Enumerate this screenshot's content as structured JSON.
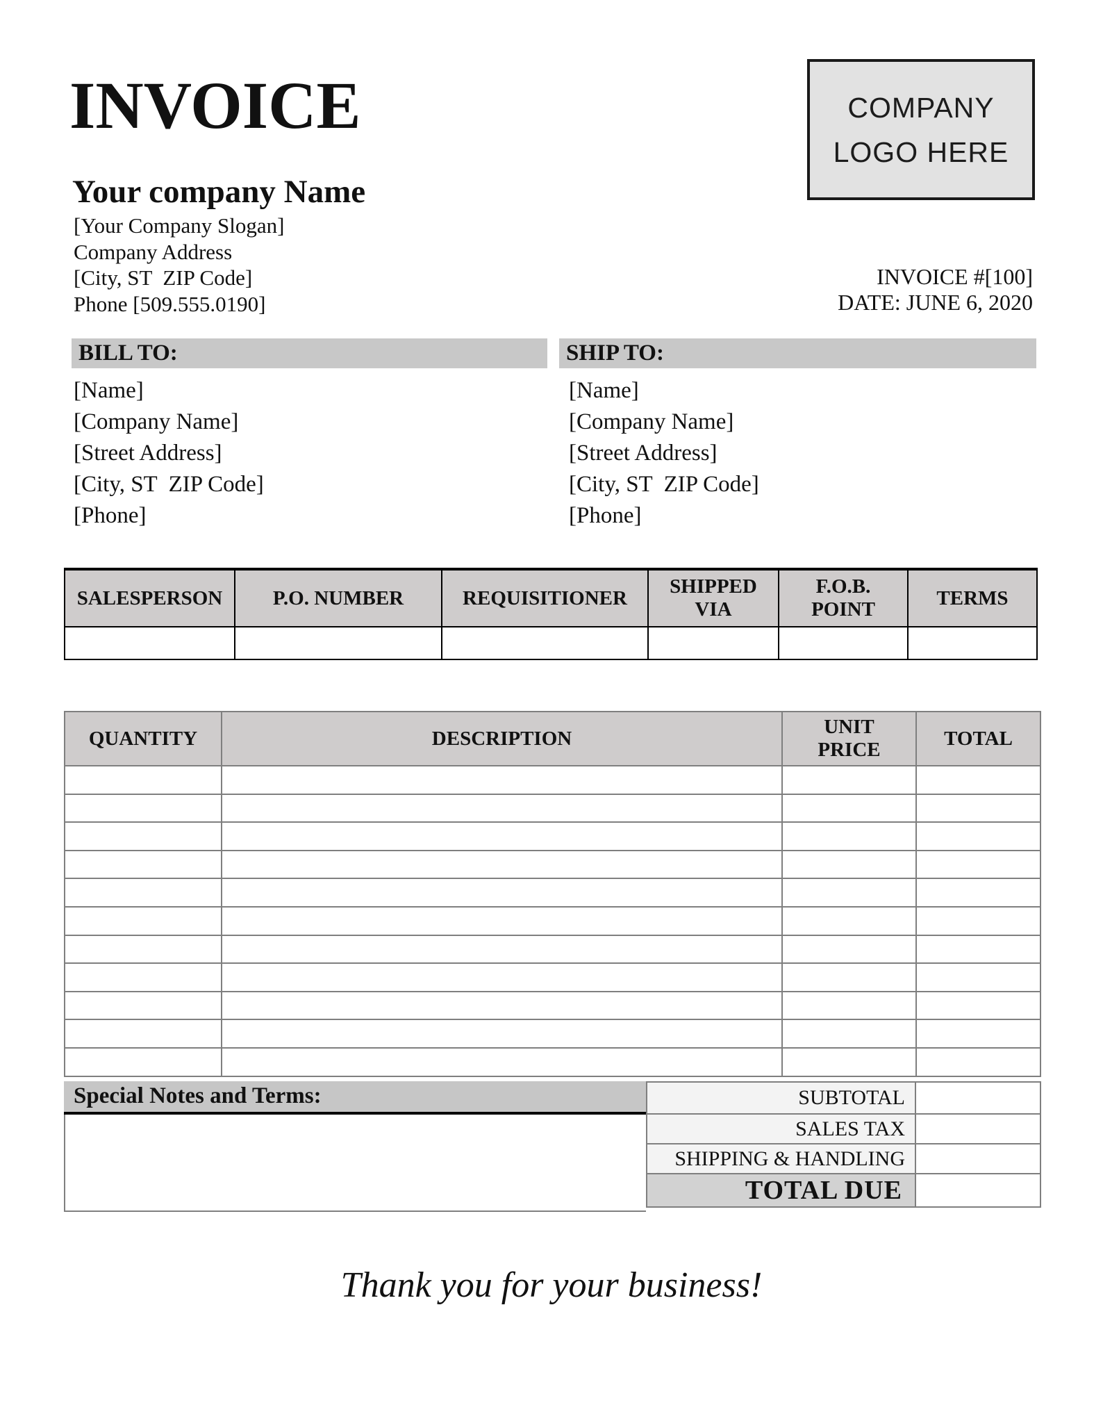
{
  "page": {
    "title": "INVOICE",
    "thank_you": "Thank you for your business!"
  },
  "company": {
    "name": "Your company Name",
    "slogan": "[Your Company Slogan]",
    "address": "Company Address",
    "city_line": "[City, ST  ZIP Code]",
    "phone_line": "Phone [509.555.0190]"
  },
  "logo": {
    "line1": "COMPANY",
    "line2": "LOGO HERE"
  },
  "meta": {
    "invoice_number": "INVOICE #[100]",
    "date": "DATE: JUNE 6, 2020"
  },
  "bill_to": {
    "heading": "BILL TO:",
    "lines": [
      "[Name]",
      "[Company Name]",
      "[Street Address]",
      "[City, ST  ZIP Code]",
      "[Phone]"
    ]
  },
  "ship_to": {
    "heading": "SHIP TO:",
    "lines": [
      "[Name]",
      "[Company Name]",
      "[Street Address]",
      "[City, ST  ZIP Code]",
      "[Phone]"
    ]
  },
  "order_info_table": {
    "headers": [
      "SALESPERSON",
      "P.O. NUMBER",
      "REQUISITIONER",
      "SHIPPED VIA",
      "F.O.B. POINT",
      "TERMS"
    ],
    "row": [
      "",
      "",
      "",
      "",
      "",
      ""
    ]
  },
  "items_table": {
    "headers": [
      "QUANTITY",
      "DESCRIPTION",
      "UNIT PRICE",
      "TOTAL"
    ],
    "empty_row_count": 11,
    "rows": []
  },
  "notes": {
    "heading": "Special Notes and Terms:",
    "content": ""
  },
  "totals": {
    "rows": [
      {
        "label": "SUBTOTAL",
        "value": ""
      },
      {
        "label": "SALES TAX",
        "value": ""
      },
      {
        "label": "SHIPPING & HANDLING",
        "value": ""
      },
      {
        "label": "TOTAL DUE",
        "value": ""
      }
    ]
  },
  "colors": {
    "bar_gray": "#c8c8c8",
    "table_header_gray": "#cfcccc",
    "notes_bar_gray": "#c6c6c6",
    "totals_label_gray": "#f3f3f3",
    "total_due_gray": "#d2d2d2",
    "logo_gray": "#e2e2e2",
    "grid_gray": "#7f7f7f",
    "border_black": "#000000"
  }
}
